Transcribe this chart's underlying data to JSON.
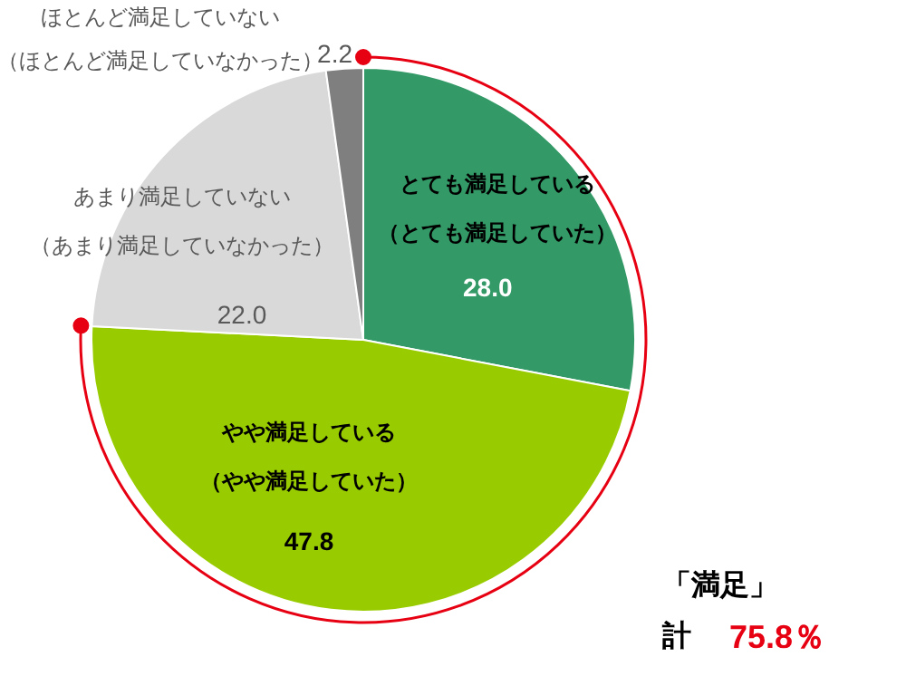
{
  "chart_data": {
    "type": "pie",
    "categories": [
      "とても満足している（とても満足していた）",
      "やや満足している（やや満足していた）",
      "あまり満足していない（あまり満足していなかった）",
      "ほとんど満足していない（ほとんど満足していなかった）"
    ],
    "values": [
      28.0,
      47.8,
      22.0,
      2.2
    ],
    "colors": [
      "#339966",
      "#99cc00",
      "#d9d9d9",
      "#7f7f7f"
    ],
    "value_labels": [
      "28.0",
      "47.8",
      "22.0",
      "2.2"
    ],
    "annotations": [
      "「満足」",
      "計",
      "75.8％"
    ]
  }
}
